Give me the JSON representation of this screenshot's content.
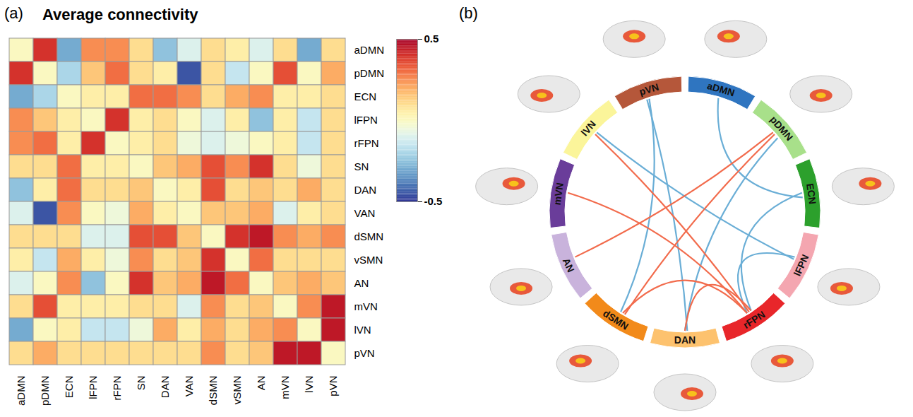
{
  "chart_data": [
    {
      "type": "heatmap",
      "panel": "(a)",
      "title": "Average connectivity",
      "columns": [
        "aDMN",
        "pDMN",
        "ECN",
        "lFPN",
        "rFPN",
        "SN",
        "DAN",
        "VAN",
        "dSMN",
        "vSMN",
        "AN",
        "mVN",
        "lVN",
        "pVN"
      ],
      "rows": [
        "aDMN",
        "pDMN",
        "ECN",
        "lFPN",
        "rFPN",
        "SN",
        "DAN",
        "VAN",
        "dSMN",
        "vSMN",
        "AN",
        "mVN",
        "lVN",
        "pVN"
      ],
      "values": [
        [
          0,
          0.4,
          -0.3,
          0.25,
          0.25,
          0.1,
          -0.25,
          -0.1,
          0.1,
          0.05,
          -0.1,
          0.1,
          -0.3,
          0.1
        ],
        [
          0.4,
          0,
          -0.2,
          0.15,
          0.3,
          0.1,
          0.05,
          -0.45,
          0.1,
          -0.15,
          0,
          0.35,
          0,
          0.2
        ],
        [
          -0.3,
          -0.2,
          0,
          0.05,
          0.05,
          0.3,
          0.3,
          0.25,
          0.1,
          0.2,
          0.25,
          0.05,
          0.05,
          0.1
        ],
        [
          0.25,
          0.15,
          0.05,
          0,
          0.4,
          0.05,
          0.1,
          0,
          -0.1,
          0.05,
          -0.25,
          0.05,
          -0.15,
          0.1
        ],
        [
          0.25,
          0.3,
          0.05,
          0.4,
          0,
          0.05,
          0.1,
          -0.05,
          -0.1,
          -0.05,
          0,
          0.05,
          -0.15,
          0.1
        ],
        [
          0.1,
          0.1,
          0.3,
          0.05,
          0.05,
          0,
          0.15,
          0.2,
          0.35,
          0.25,
          0.4,
          0.1,
          -0.05,
          0.1
        ],
        [
          -0.25,
          0.05,
          0.3,
          0.1,
          0.1,
          0.15,
          0,
          0.05,
          0.35,
          0.1,
          0.15,
          0.1,
          0.2,
          0.1
        ],
        [
          -0.1,
          -0.45,
          0.25,
          0,
          -0.05,
          0.2,
          0.05,
          0,
          0.15,
          0.15,
          0.2,
          -0.1,
          0.05,
          0.1
        ],
        [
          0.1,
          0.1,
          0.1,
          -0.1,
          -0.1,
          0.35,
          0.35,
          0.15,
          0,
          0.4,
          0.45,
          0.25,
          0.2,
          0.25
        ],
        [
          0.05,
          -0.15,
          0.2,
          0.05,
          -0.05,
          0.25,
          0.1,
          0.15,
          0.4,
          0,
          0.3,
          0.1,
          0.1,
          0.1
        ],
        [
          -0.1,
          0,
          0.25,
          -0.25,
          0,
          0.4,
          0.15,
          0.2,
          0.45,
          0.3,
          0,
          0.15,
          0.2,
          0.15
        ],
        [
          0.1,
          0.35,
          0.05,
          0.05,
          0.05,
          0.1,
          0.1,
          -0.1,
          0.25,
          0.1,
          0.15,
          0,
          0.25,
          0.45
        ],
        [
          -0.3,
          0,
          0.05,
          -0.15,
          -0.15,
          -0.05,
          0.2,
          0.05,
          0.2,
          0.1,
          0.2,
          0.25,
          0,
          0.45
        ],
        [
          0.1,
          0.2,
          0.1,
          0.1,
          0.1,
          0.1,
          0.1,
          0.1,
          0.25,
          0.1,
          0.15,
          0.45,
          0.45,
          0
        ]
      ],
      "colorbar": {
        "range": [
          -0.5,
          0.5
        ],
        "ticks": [
          -0.5,
          0.5
        ]
      }
    },
    {
      "type": "chord",
      "panel": "(b)",
      "nodes": [
        {
          "name": "aDMN",
          "color": "#2f75c0"
        },
        {
          "name": "pDMN",
          "color": "#a8e08a"
        },
        {
          "name": "ECN",
          "color": "#2ca02c"
        },
        {
          "name": "lFPN",
          "color": "#f4a6b0"
        },
        {
          "name": "rFPN",
          "color": "#e8262a"
        },
        {
          "name": "DAN",
          "color": "#fdc26e"
        },
        {
          "name": "dSMN",
          "color": "#f28a1a"
        },
        {
          "name": "AN",
          "color": "#c9b3dc"
        },
        {
          "name": "mVN",
          "color": "#6a3d9a"
        },
        {
          "name": "lVN",
          "color": "#fbf59a"
        },
        {
          "name": "pVN",
          "color": "#b5573a"
        }
      ],
      "edges": [
        {
          "source": "pVN",
          "target": "DAN",
          "color": "#6aaed6"
        },
        {
          "source": "pVN",
          "target": "dSMN",
          "color": "#6aaed6"
        },
        {
          "source": "aDMN",
          "target": "ECN",
          "color": "#6aaed6"
        },
        {
          "source": "lVN",
          "target": "lFPN",
          "color": "#6aaed6"
        },
        {
          "source": "pDMN",
          "target": "DAN",
          "color": "#6aaed6"
        },
        {
          "source": "lFPN",
          "target": "rFPN",
          "color": "#6aaed6"
        },
        {
          "source": "ECN",
          "target": "rFPN",
          "color": "#6aaed6"
        },
        {
          "source": "lVN",
          "target": "rFPN",
          "color": "#f26b4c"
        },
        {
          "source": "mVN",
          "target": "rFPN",
          "color": "#f26b4c"
        },
        {
          "source": "AN",
          "target": "pDMN",
          "color": "#f26b4c"
        },
        {
          "source": "dSMN",
          "target": "pDMN",
          "color": "#f26b4c"
        },
        {
          "source": "dSMN",
          "target": "rFPN",
          "color": "#f26b4c"
        },
        {
          "source": "DAN",
          "target": "rFPN",
          "color": "#f26b4c"
        }
      ]
    }
  ]
}
